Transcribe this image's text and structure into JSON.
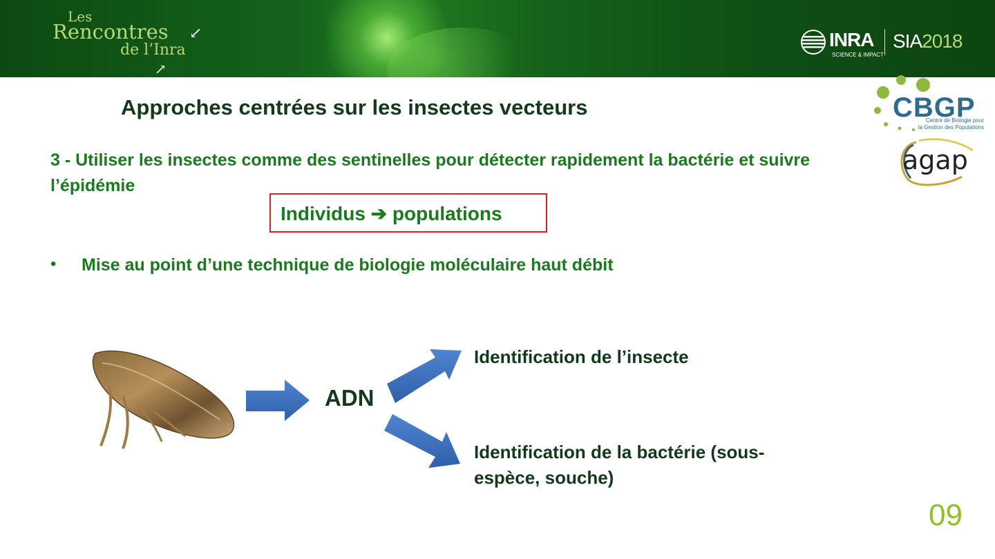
{
  "header": {
    "brand_les": "Les",
    "brand_rencontres": "Rencontres",
    "brand_inra": "de l’Inra",
    "inra": "INRA",
    "inra_tagline": "SCIENCE & IMPACT",
    "sia": "SIA",
    "sia_year": "2018"
  },
  "logos": {
    "cbgp": "CBGP",
    "cbgp_line1": "Centre de Biologie pour",
    "cbgp_line2": "la Gestion des Populations",
    "agap": "agap"
  },
  "slide": {
    "title": "Approches centrées sur les insectes vecteurs",
    "subtitle": "3 - Utiliser les insectes comme des sentinelles pour détecter rapidement la bactérie et suivre l’épidémie",
    "box_text": "Individus ➔ populations",
    "bullet": "Mise au point d’une technique de biologie moléculaire haut débit",
    "adn": "ADN",
    "id_insect": "Identification de l’insecte",
    "id_bacteria": "Identification de la bactérie (sous-espèce, souche)",
    "page_number": "09"
  },
  "colors": {
    "banner_green": "#0f4f14",
    "title_dark": "#123a1a",
    "text_green": "#1a7a1e",
    "box_red": "#d2232a",
    "arrow_blue": "#3f72c0",
    "page_green": "#8dc21f"
  }
}
